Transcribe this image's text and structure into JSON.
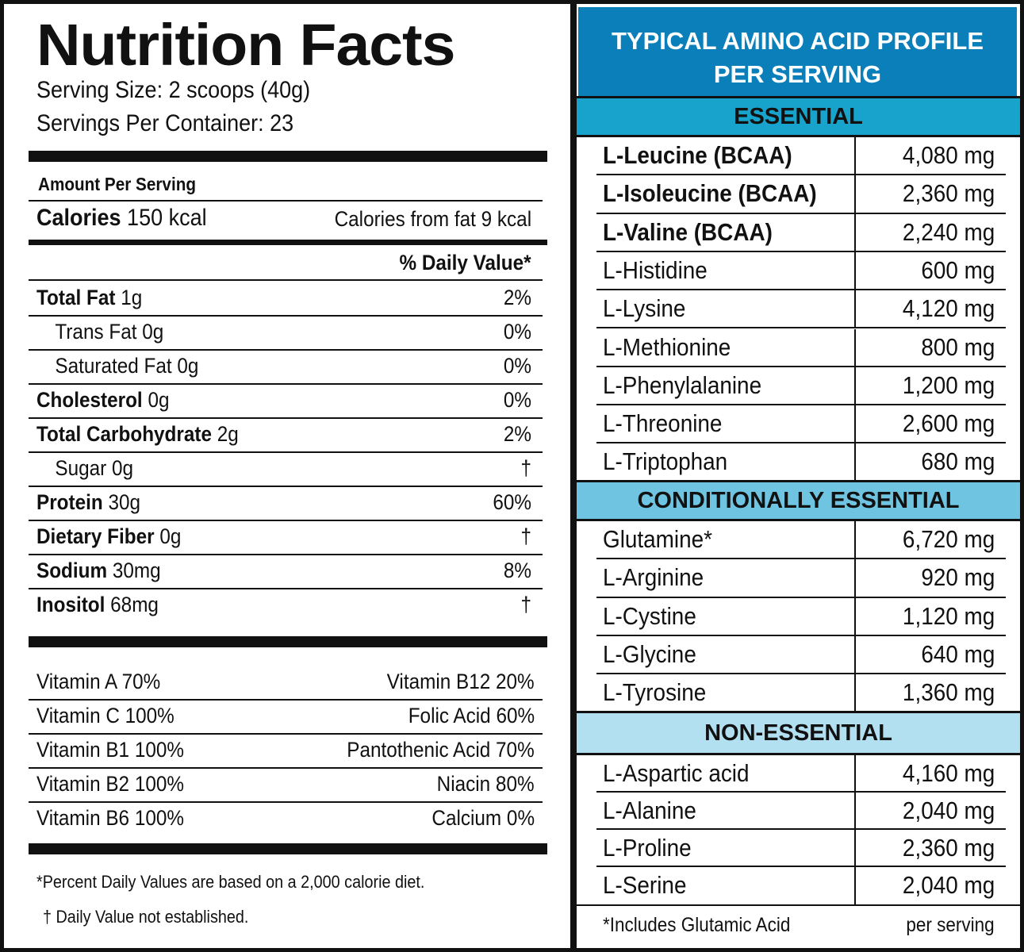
{
  "nutrition": {
    "title": "Nutrition Facts",
    "serving_size": "Serving Size: 2 scoops (40g)",
    "servings_per_container": "Servings Per Container: 23",
    "amount_per_serving": "Amount Per Serving",
    "calories_label": "Calories",
    "calories_value": "150 kcal",
    "calories_from_fat": "Calories from fat 9 kcal",
    "daily_value_header": "% Daily Value*",
    "nutrients": [
      {
        "name": "Total Fat",
        "amount": "1g",
        "dv": "2%",
        "bold": true
      },
      {
        "name": "Trans Fat",
        "amount": "0g",
        "dv": "0%",
        "bold": false
      },
      {
        "name": "Saturated Fat",
        "amount": "0g",
        "dv": "0%",
        "bold": false
      },
      {
        "name": "Cholesterol",
        "amount": "0g",
        "dv": "0%",
        "bold": true
      },
      {
        "name": "Total Carbohydrate",
        "amount": "2g",
        "dv": "2%",
        "bold": true
      },
      {
        "name": "Sugar",
        "amount": "0g",
        "dv": "†",
        "bold": false
      },
      {
        "name": "Protein",
        "amount": "30g",
        "dv": "60%",
        "bold": true
      },
      {
        "name": "Dietary Fiber",
        "amount": "0g",
        "dv": "†",
        "bold": true
      },
      {
        "name": "Sodium",
        "amount": "30mg",
        "dv": "8%",
        "bold": true
      },
      {
        "name": "Inositol",
        "amount": "68mg",
        "dv": "†",
        "bold": true
      }
    ],
    "vitamins": [
      {
        "left": "Vitamin A 70%",
        "right": "Vitamin B12 20%"
      },
      {
        "left": "Vitamin C 100%",
        "right": "Folic Acid 60%"
      },
      {
        "left": "Vitamin B1 100%",
        "right": "Pantothenic Acid 70%"
      },
      {
        "left": "Vitamin B2 100%",
        "right": "Niacin 80%"
      },
      {
        "left": "Vitamin B6 100%",
        "right": "Calcium 0%"
      }
    ],
    "footnote_1": "*Percent Daily Values are based on a 2,000 calorie diet.",
    "footnote_2": "† Daily Value not established."
  },
  "amino": {
    "title_line1": "TYPICAL AMINO ACID PROFILE",
    "title_line2": "PER SERVING",
    "colors": {
      "header": "#0b7fb9",
      "essential": "#17a3cb",
      "conditional": "#6fc5e1",
      "non_essential": "#b2e0f1"
    },
    "sections": [
      {
        "label": "ESSENTIAL",
        "rows": [
          {
            "name": "L-Leucine (BCAA)",
            "value": "4,080 mg",
            "bold": true
          },
          {
            "name": "L-Isoleucine (BCAA)",
            "value": "2,360 mg",
            "bold": true
          },
          {
            "name": "L-Valine (BCAA)",
            "value": "2,240 mg",
            "bold": true
          },
          {
            "name": "L-Histidine",
            "value": "600 mg",
            "bold": false
          },
          {
            "name": "L-Lysine",
            "value": "4,120 mg",
            "bold": false
          },
          {
            "name": "L-Methionine",
            "value": "800 mg",
            "bold": false
          },
          {
            "name": "L-Phenylalanine",
            "value": "1,200 mg",
            "bold": false
          },
          {
            "name": "L-Threonine",
            "value": "2,600 mg",
            "bold": false
          },
          {
            "name": "L-Triptophan",
            "value": "680 mg",
            "bold": false
          }
        ]
      },
      {
        "label": "CONDITIONALLY ESSENTIAL",
        "rows": [
          {
            "name": "Glutamine*",
            "value": "6,720 mg",
            "bold": false
          },
          {
            "name": "L-Arginine",
            "value": "920 mg",
            "bold": false
          },
          {
            "name": "L-Cystine",
            "value": "1,120 mg",
            "bold": false
          },
          {
            "name": "L-Glycine",
            "value": "640 mg",
            "bold": false
          },
          {
            "name": "L-Tyrosine",
            "value": "1,360 mg",
            "bold": false
          }
        ]
      },
      {
        "label": "NON-ESSENTIAL",
        "rows": [
          {
            "name": "L-Aspartic acid",
            "value": "4,160 mg",
            "bold": false
          },
          {
            "name": "L-Alanine",
            "value": "2,040 mg",
            "bold": false
          },
          {
            "name": "L-Proline",
            "value": "2,360 mg",
            "bold": false
          },
          {
            "name": "L-Serine",
            "value": "2,040 mg",
            "bold": false
          }
        ]
      }
    ],
    "footnote_left": "*Includes Glutamic Acid",
    "footnote_right": "per serving"
  }
}
